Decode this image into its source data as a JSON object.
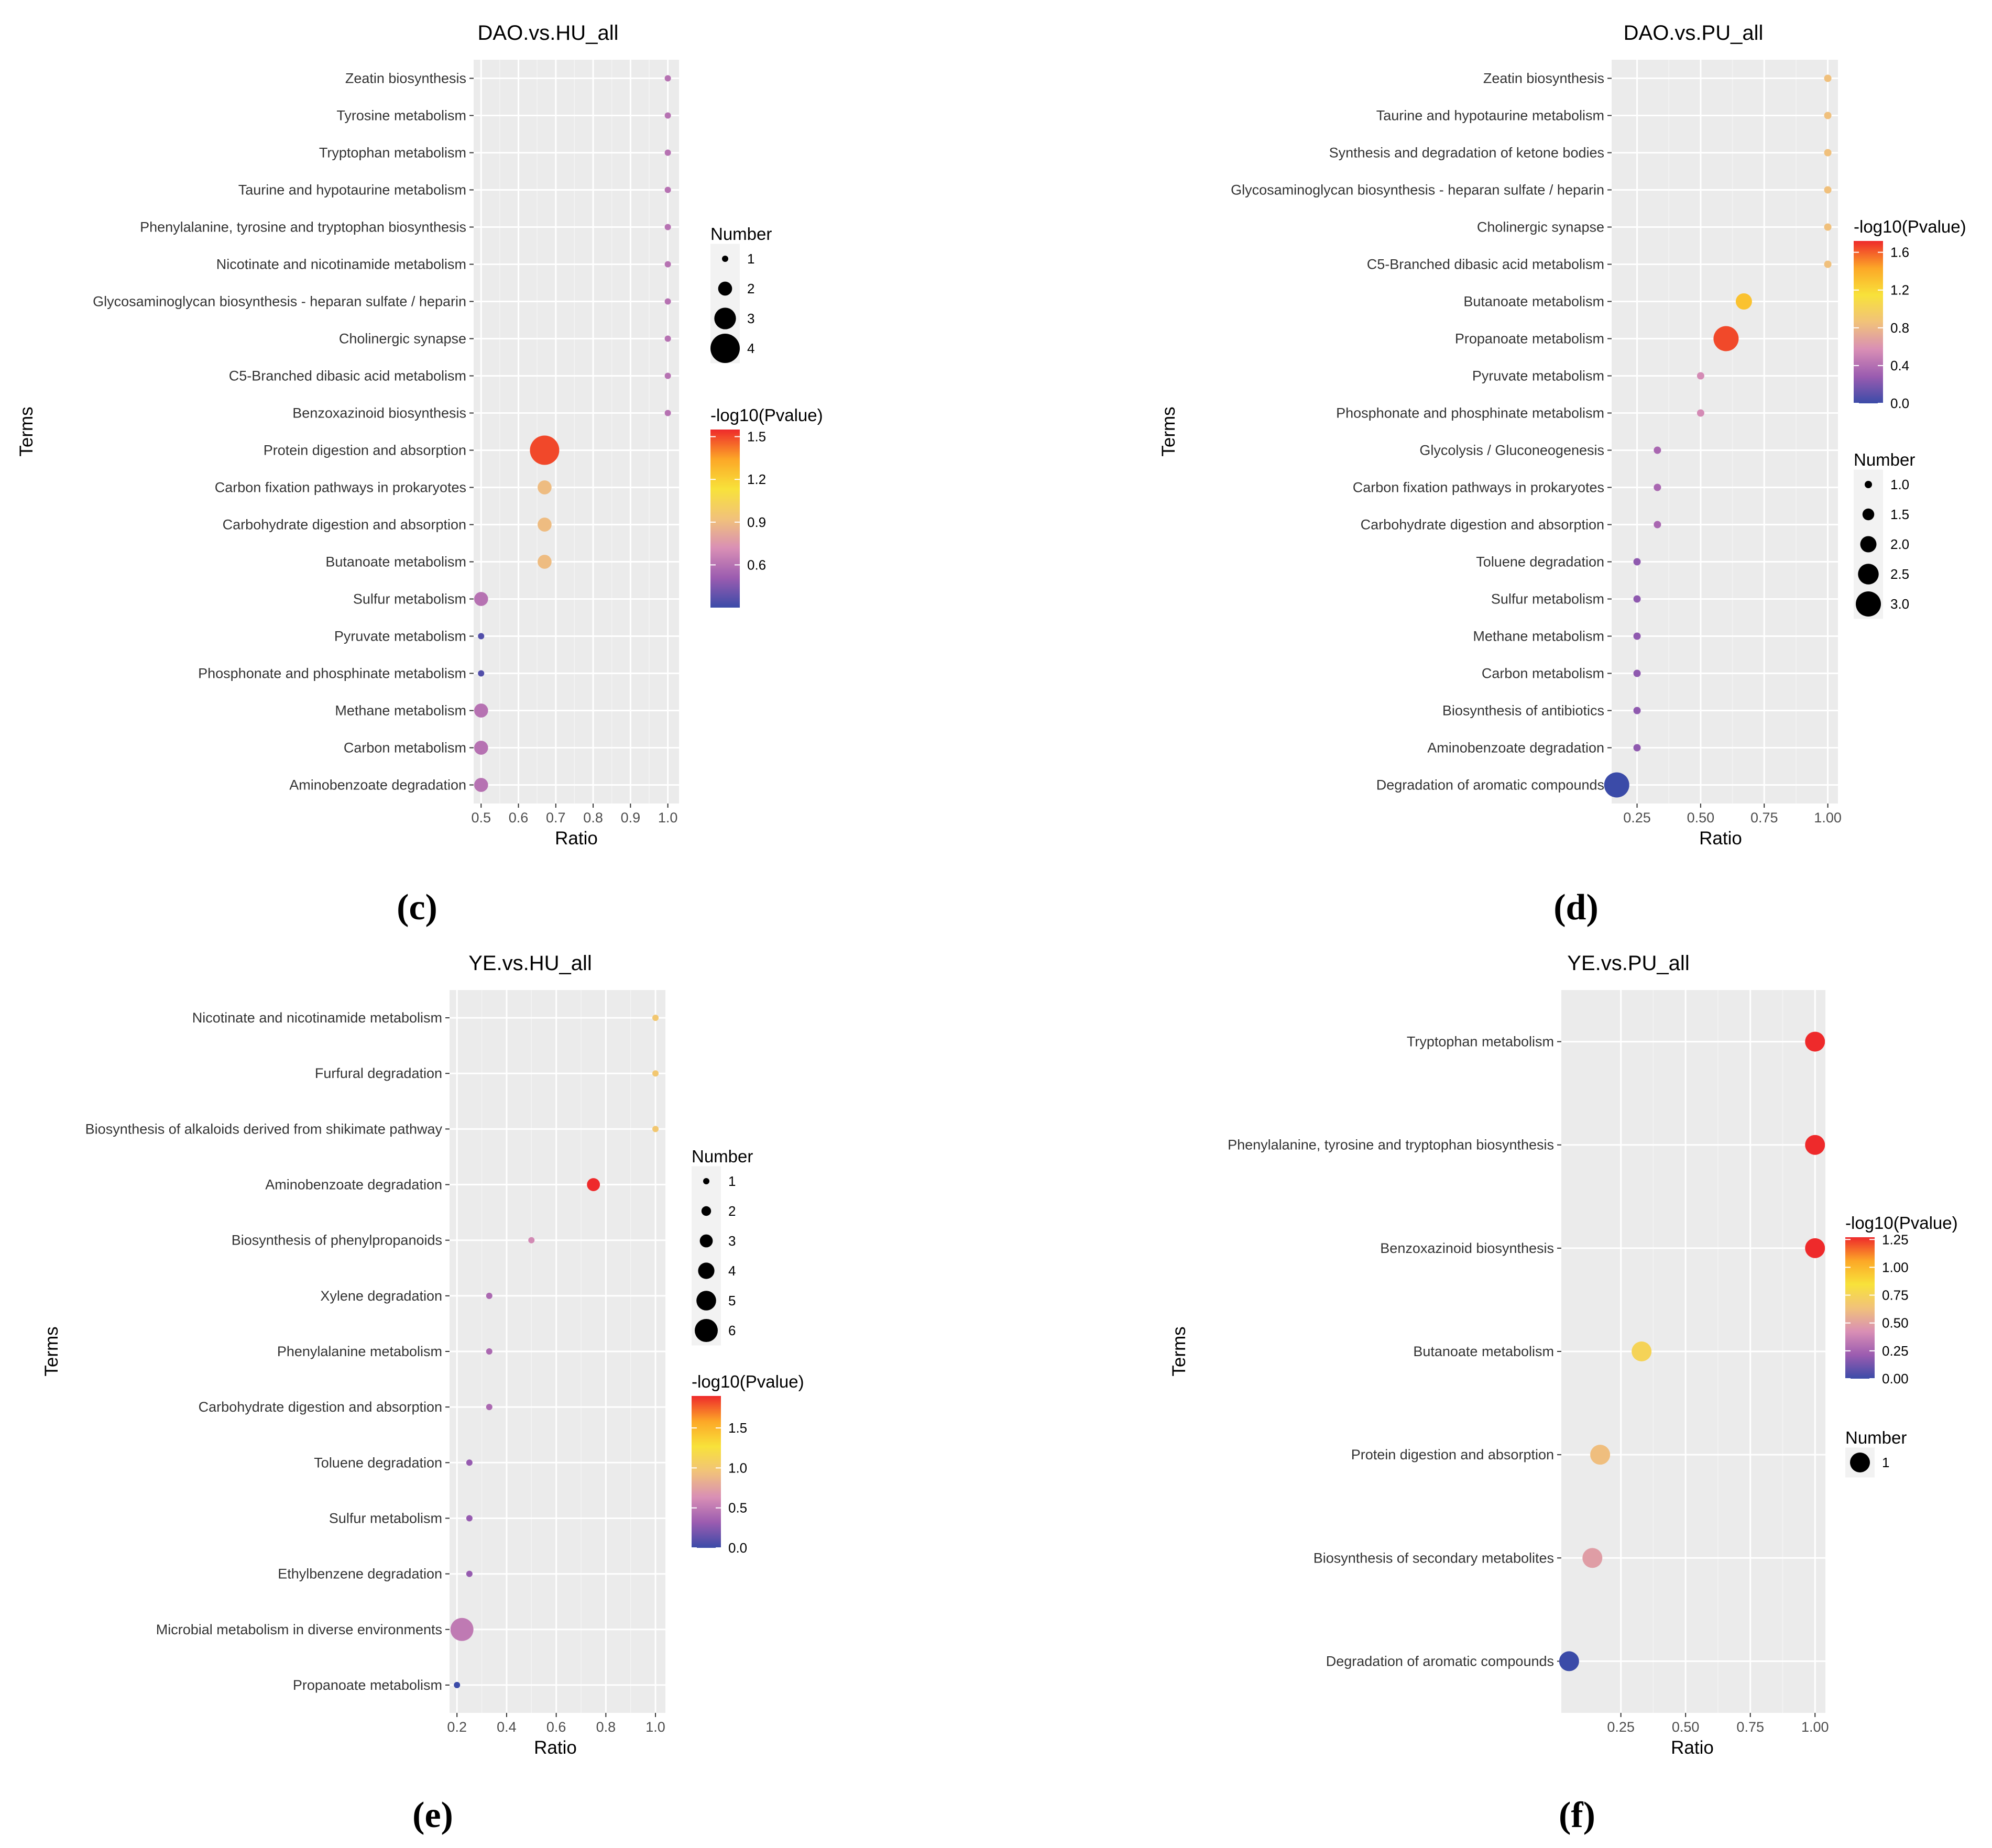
{
  "colors": {
    "panel_bg": "#ebebeb",
    "grid_major": "#ffffff",
    "grid_minor": "#f4f4f4",
    "tick_text": "#4d4d4d",
    "term_text": "#333333",
    "colorscale": [
      "#3b4ba8",
      "#9b5cb0",
      "#d98fb5",
      "#f1c27a",
      "#f8e23a",
      "#fca727",
      "#ee2a2b"
    ]
  },
  "chart_data": [
    {
      "panel_label": "(c)",
      "type": "scatter",
      "title": "DAO.vs.HU_all",
      "xlabel": "Ratio",
      "ylabel": "Terms",
      "grid": true,
      "xlim": [
        0.48,
        1.03
      ],
      "xticks": [
        0.5,
        0.6,
        0.7,
        0.8,
        0.9,
        1.0
      ],
      "xtick_labels": [
        "0.5",
        "0.6",
        "0.7",
        "0.8",
        "0.9",
        "1.0"
      ],
      "terms": [
        "Zeatin biosynthesis",
        "Tyrosine metabolism",
        "Tryptophan metabolism",
        "Taurine and hypotaurine metabolism",
        "Phenylalanine, tyrosine and tryptophan biosynthesis",
        "Nicotinate and nicotinamide metabolism",
        "Glycosaminoglycan biosynthesis - heparan sulfate / heparin",
        "Cholinergic synapse",
        "C5-Branched dibasic acid metabolism",
        "Benzoxazinoid biosynthesis",
        "Protein digestion and absorption",
        "Carbon fixation pathways in prokaryotes",
        "Carbohydrate digestion and absorption",
        "Butanoate metabolism",
        "Sulfur metabolism",
        "Pyruvate metabolism",
        "Phosphonate and phosphinate metabolism",
        "Methane metabolism",
        "Carbon metabolism",
        "Aminobenzoate degradation"
      ],
      "ratio": [
        1.0,
        1.0,
        1.0,
        1.0,
        1.0,
        1.0,
        1.0,
        1.0,
        1.0,
        1.0,
        0.67,
        0.67,
        0.67,
        0.67,
        0.5,
        0.5,
        0.5,
        0.5,
        0.5,
        0.5
      ],
      "number": [
        1,
        1,
        1,
        1,
        1,
        1,
        1,
        1,
        1,
        1,
        4,
        2,
        2,
        2,
        2,
        1,
        1,
        2,
        2,
        2
      ],
      "neg_log10_p": [
        0.6,
        0.6,
        0.6,
        0.6,
        0.6,
        0.6,
        0.6,
        0.6,
        0.6,
        0.6,
        1.5,
        0.9,
        0.9,
        0.9,
        0.6,
        0.35,
        0.35,
        0.6,
        0.6,
        0.6
      ],
      "color_legend": {
        "title": "-log10(Pvalue)",
        "range": [
          0.3,
          1.55
        ],
        "ticks": [
          1.5,
          1.2,
          0.9,
          0.6
        ],
        "tick_labels": [
          "1.5",
          "1.2",
          "0.9",
          "0.6"
        ]
      },
      "size_legend": {
        "title": "Number",
        "values": [
          1,
          2,
          3,
          4
        ],
        "labels": [
          "1",
          "2",
          "3",
          "4"
        ],
        "order": "size-first"
      },
      "legend_order": "size-first"
    },
    {
      "panel_label": "(d)",
      "type": "scatter",
      "title": "DAO.vs.PU_all",
      "xlabel": "Ratio",
      "ylabel": "Terms",
      "grid": true,
      "xlim": [
        0.15,
        1.04
      ],
      "xticks": [
        0.25,
        0.5,
        0.75,
        1.0
      ],
      "xtick_labels": [
        "0.25",
        "0.50",
        "0.75",
        "1.00"
      ],
      "terms": [
        "Zeatin biosynthesis",
        "Taurine and hypotaurine metabolism",
        "Synthesis and degradation of ketone bodies",
        "Glycosaminoglycan biosynthesis - heparan sulfate / heparin",
        "Cholinergic synapse",
        "C5-Branched dibasic acid metabolism",
        "Butanoate metabolism",
        "Propanoate metabolism",
        "Pyruvate metabolism",
        "Phosphonate and phosphinate metabolism",
        "Glycolysis / Gluconeogenesis",
        "Carbon fixation pathways in prokaryotes",
        "Carbohydrate digestion and absorption",
        "Toluene degradation",
        "Sulfur metabolism",
        "Methane metabolism",
        "Carbon metabolism",
        "Biosynthesis of antibiotics",
        "Aminobenzoate degradation",
        "Degradation of aromatic compounds"
      ],
      "ratio": [
        1.0,
        1.0,
        1.0,
        1.0,
        1.0,
        1.0,
        0.67,
        0.6,
        0.5,
        0.5,
        0.33,
        0.33,
        0.33,
        0.25,
        0.25,
        0.25,
        0.25,
        0.25,
        0.25,
        0.17
      ],
      "number": [
        1,
        1,
        1,
        1,
        1,
        1,
        2,
        3,
        1,
        1,
        1,
        1,
        1,
        1,
        1,
        1,
        1,
        1,
        1,
        3
      ],
      "neg_log10_p": [
        0.85,
        0.85,
        0.85,
        0.85,
        0.85,
        0.85,
        1.3,
        1.65,
        0.55,
        0.55,
        0.35,
        0.35,
        0.35,
        0.25,
        0.25,
        0.25,
        0.25,
        0.25,
        0.25,
        0.0
      ],
      "color_legend": {
        "title": "-log10(Pvalue)",
        "range": [
          0.0,
          1.72
        ],
        "ticks": [
          1.6,
          1.2,
          0.8,
          0.4,
          0.0
        ],
        "tick_labels": [
          "1.6",
          "1.2",
          "0.8",
          "0.4",
          "0.0"
        ]
      },
      "size_legend": {
        "title": "Number",
        "values": [
          1.0,
          1.5,
          2.0,
          2.5,
          3.0
        ],
        "labels": [
          "1.0",
          "1.5",
          "2.0",
          "2.5",
          "3.0"
        ]
      },
      "legend_order": "color-first"
    },
    {
      "panel_label": "(e)",
      "type": "scatter",
      "title": "YE.vs.HU_all",
      "xlabel": "Ratio",
      "ylabel": "Terms",
      "grid": true,
      "xlim": [
        0.17,
        1.04
      ],
      "xticks": [
        0.2,
        0.4,
        0.6,
        0.8,
        1.0
      ],
      "xtick_labels": [
        "0.2",
        "0.4",
        "0.6",
        "0.8",
        "1.0"
      ],
      "terms": [
        "Nicotinate and nicotinamide metabolism",
        "Furfural degradation",
        "Biosynthesis of alkaloids derived from shikimate pathway",
        "Aminobenzoate degradation",
        "Biosynthesis of phenylpropanoids",
        "Xylene degradation",
        "Phenylalanine metabolism",
        "Carbohydrate digestion and absorption",
        "Toluene degradation",
        "Sulfur metabolism",
        "Ethylbenzene degradation",
        "Microbial metabolism in diverse environments",
        "Propanoate metabolism"
      ],
      "ratio": [
        1.0,
        1.0,
        1.0,
        0.75,
        0.5,
        0.33,
        0.33,
        0.33,
        0.25,
        0.25,
        0.25,
        0.22,
        0.2
      ],
      "number": [
        1,
        1,
        1,
        3,
        1,
        1,
        1,
        1,
        1,
        1,
        1,
        6,
        1
      ],
      "neg_log10_p": [
        1.0,
        1.0,
        1.0,
        1.9,
        0.6,
        0.4,
        0.4,
        0.4,
        0.3,
        0.3,
        0.3,
        0.5,
        0.0
      ],
      "color_legend": {
        "title": "-log10(Pvalue)",
        "range": [
          0.0,
          1.9
        ],
        "ticks": [
          1.5,
          1.0,
          0.5,
          0.0
        ],
        "tick_labels": [
          "1.5",
          "1.0",
          "0.5",
          "0.0"
        ]
      },
      "size_legend": {
        "title": "Number",
        "values": [
          1,
          2,
          3,
          4,
          5,
          6
        ],
        "labels": [
          "1",
          "2",
          "3",
          "4",
          "5",
          "6"
        ]
      },
      "legend_order": "size-first"
    },
    {
      "panel_label": "(f)",
      "type": "scatter",
      "title": "YE.vs.PU_all",
      "xlabel": "Ratio",
      "ylabel": "Terms",
      "grid": true,
      "xlim": [
        0.02,
        1.04
      ],
      "xticks": [
        0.25,
        0.5,
        0.75,
        1.0
      ],
      "xtick_labels": [
        "0.25",
        "0.50",
        "0.75",
        "1.00"
      ],
      "terms": [
        "Tryptophan metabolism",
        "Phenylalanine, tyrosine and tryptophan biosynthesis",
        "Benzoxazinoid biosynthesis",
        "Butanoate metabolism",
        "Protein digestion and absorption",
        "Biosynthesis of secondary metabolites",
        "Degradation of aromatic compounds"
      ],
      "ratio": [
        1.0,
        1.0,
        1.0,
        0.33,
        0.17,
        0.14,
        0.05
      ],
      "number": [
        1,
        1,
        1,
        1,
        1,
        1,
        1
      ],
      "neg_log10_p": [
        1.27,
        1.27,
        1.27,
        0.75,
        0.62,
        0.48,
        0.0
      ],
      "color_legend": {
        "title": "-log10(Pvalue)",
        "range": [
          0.0,
          1.27
        ],
        "ticks": [
          1.25,
          1.0,
          0.75,
          0.5,
          0.25,
          0.0
        ],
        "tick_labels": [
          "1.25",
          "1.00",
          "0.75",
          "0.50",
          "0.25",
          "0.00"
        ]
      },
      "size_legend": {
        "title": "Number",
        "values": [
          1
        ],
        "labels": [
          "1"
        ]
      },
      "legend_order": "color-first"
    }
  ]
}
